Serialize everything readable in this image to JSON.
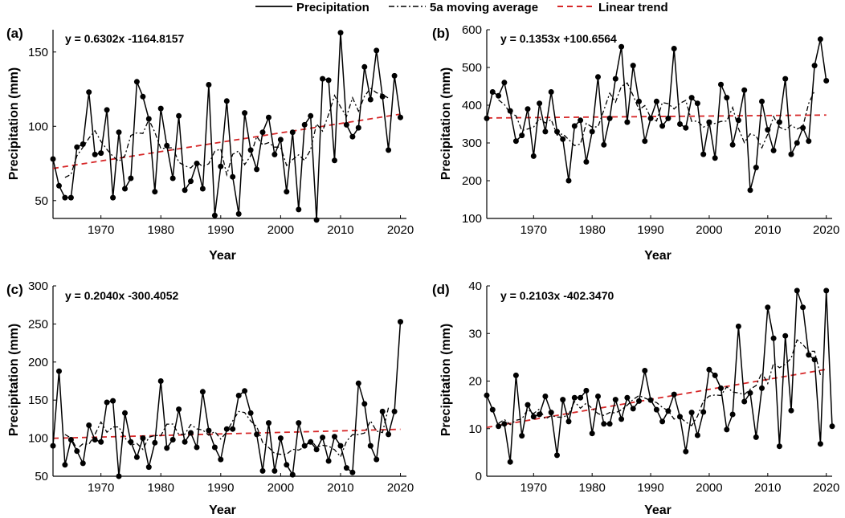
{
  "legend": {
    "precip_label": "Precipitation",
    "ma_label": "5a moving average",
    "trend_label": "Linear trend"
  },
  "colors": {
    "precip": "#000000",
    "ma": "#000000",
    "trend": "#d62728"
  },
  "chart_data": [
    {
      "type": "line",
      "panel_label": "(a)",
      "equation": "y = 0.6302x -1164.8157",
      "xlabel": "Year",
      "ylabel": "Precipitation (mm)",
      "xlim": [
        1962,
        2021
      ],
      "ylim": [
        38,
        165
      ],
      "xticks": [
        1970,
        1980,
        1990,
        2000,
        2010,
        2020
      ],
      "yticks": [
        50,
        100,
        150
      ],
      "start_year": 1962,
      "precip": [
        78,
        60,
        52,
        52,
        86,
        88,
        123,
        81,
        82,
        111,
        52,
        96,
        58,
        65,
        130,
        120,
        105,
        56,
        112,
        87,
        65,
        107,
        57,
        63,
        75,
        58,
        128,
        40,
        73,
        117,
        66,
        41,
        109,
        84,
        71,
        96,
        106,
        81,
        91,
        56,
        96,
        44,
        101,
        107,
        37,
        132,
        131,
        77,
        163,
        101,
        93,
        99,
        140,
        118,
        151,
        120,
        84,
        134,
        106
      ],
      "trend_slope": 0.6302,
      "trend_intercept": -1164.8157
    },
    {
      "type": "line",
      "panel_label": "(b)",
      "equation": "y = 0.1353x +100.6564",
      "xlabel": "Year",
      "ylabel": "Precipitation (mm)",
      "xlim": [
        1962,
        2021
      ],
      "ylim": [
        100,
        600
      ],
      "xticks": [
        1970,
        1980,
        1990,
        2000,
        2010,
        2020
      ],
      "yticks": [
        100,
        200,
        300,
        400,
        500,
        600
      ],
      "start_year": 1962,
      "precip": [
        365,
        435,
        425,
        460,
        385,
        305,
        320,
        390,
        265,
        405,
        330,
        435,
        330,
        310,
        200,
        345,
        360,
        250,
        330,
        475,
        295,
        365,
        470,
        555,
        355,
        505,
        410,
        305,
        365,
        410,
        345,
        365,
        550,
        350,
        340,
        420,
        405,
        270,
        355,
        260,
        455,
        420,
        295,
        360,
        440,
        175,
        235,
        410,
        335,
        280,
        355,
        470,
        270,
        300,
        340,
        305,
        505,
        575,
        465
      ],
      "trend_slope": 0.1353,
      "trend_intercept": 100.6564
    },
    {
      "type": "line",
      "panel_label": "(c)",
      "equation": "y = 0.2040x -300.4052",
      "xlabel": "Year",
      "ylabel": "Precipitation (mm)",
      "xlim": [
        1962,
        2021
      ],
      "ylim": [
        50,
        300
      ],
      "xticks": [
        1970,
        1980,
        1990,
        2000,
        2010,
        2020
      ],
      "yticks": [
        50,
        100,
        150,
        200,
        250,
        300
      ],
      "start_year": 1962,
      "precip": [
        90,
        188,
        65,
        98,
        83,
        67,
        117,
        98,
        95,
        147,
        149,
        50,
        133,
        95,
        75,
        100,
        62,
        94,
        175,
        87,
        98,
        138,
        95,
        107,
        88,
        161,
        110,
        88,
        72,
        112,
        112,
        156,
        162,
        133,
        105,
        57,
        120,
        57,
        100,
        65,
        52,
        120,
        90,
        95,
        85,
        101,
        70,
        102,
        90,
        61,
        55,
        172,
        145,
        90,
        72,
        135,
        105,
        135,
        253
      ],
      "trend_slope": 0.204,
      "trend_intercept": -300.4052
    },
    {
      "type": "line",
      "panel_label": "(d)",
      "equation": "y = 0.2103x -402.3470",
      "xlabel": "Year",
      "ylabel": "Precipitation (mm)",
      "xlim": [
        1962,
        2021
      ],
      "ylim": [
        0,
        40
      ],
      "xticks": [
        1970,
        1980,
        1990,
        2000,
        2010,
        2020
      ],
      "yticks": [
        0,
        10,
        20,
        30,
        40
      ],
      "start_year": 1962,
      "precip": [
        17,
        14,
        10.5,
        11,
        3,
        21.2,
        8.5,
        15,
        12.5,
        13,
        16.8,
        13.4,
        4.4,
        16.1,
        11.5,
        16.5,
        16.5,
        18,
        9,
        16.8,
        11,
        11,
        16.1,
        12,
        16.5,
        14.2,
        15.8,
        22.2,
        16,
        14,
        11.5,
        13.7,
        17.2,
        12.5,
        5.2,
        13.4,
        8.6,
        13.5,
        22.4,
        21.2,
        18.5,
        9.8,
        13,
        31.5,
        15.7,
        17.5,
        8.2,
        18.5,
        35.5,
        29,
        6.3,
        29.5,
        13.8,
        39,
        35.5,
        25.5,
        24.5,
        6.8,
        39,
        10.5
      ],
      "trend_slope": 0.2103,
      "trend_intercept": -402.347
    }
  ]
}
